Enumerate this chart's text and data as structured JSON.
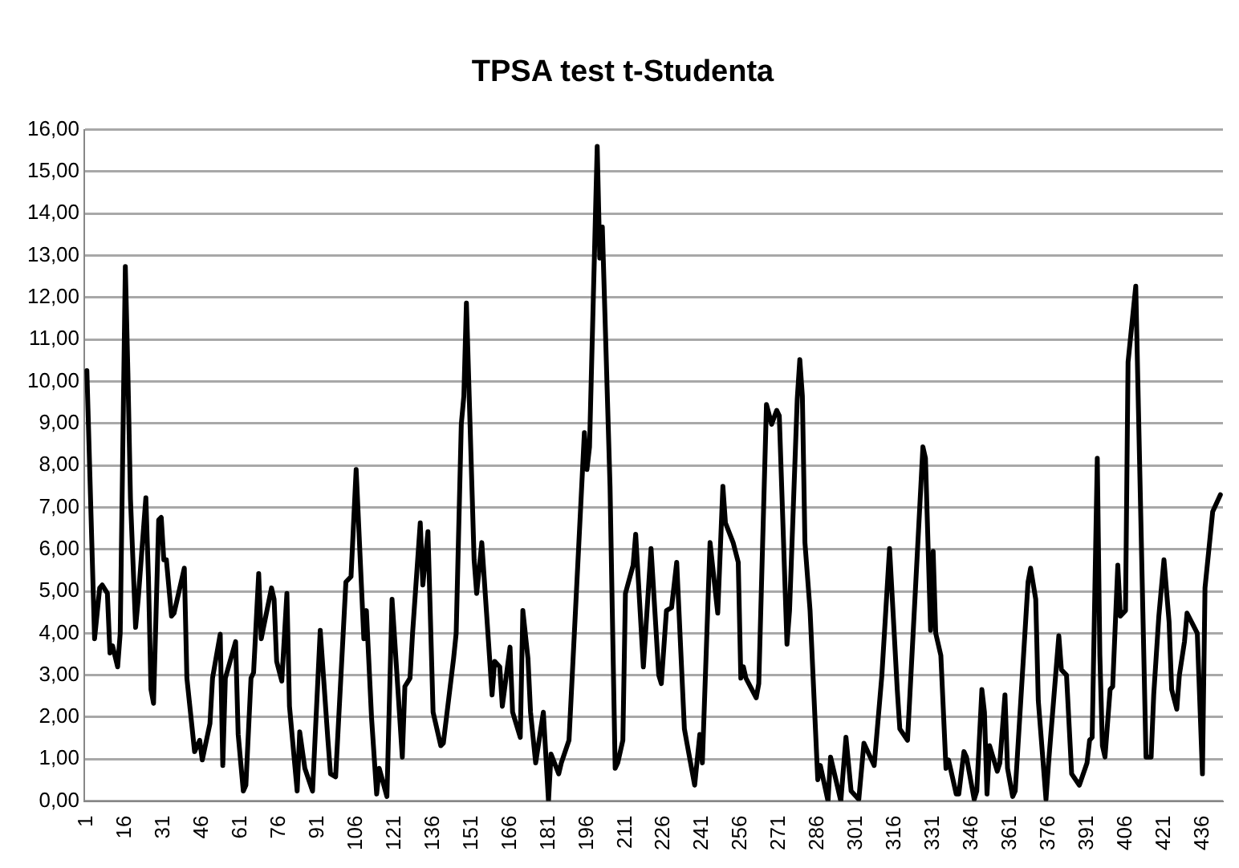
{
  "chart_data": {
    "type": "line",
    "title": "TPSA test t-Studenta",
    "x": [
      1,
      4,
      6,
      7,
      9,
      10,
      11,
      13,
      14,
      16,
      17,
      18,
      20,
      21,
      24,
      25,
      26,
      27,
      29,
      30,
      31,
      32,
      34,
      35,
      39,
      40,
      43,
      45,
      46,
      49,
      50,
      53,
      54,
      55,
      59,
      60,
      62,
      63,
      65,
      66,
      68,
      69,
      73,
      74,
      75,
      77,
      79,
      80,
      83,
      84,
      86,
      89,
      92,
      95,
      96,
      98,
      102,
      104,
      106,
      109,
      110,
      112,
      114,
      115,
      118,
      120,
      124,
      125,
      127,
      128,
      131,
      132,
      134,
      136,
      139,
      140,
      144,
      145,
      147,
      148,
      149,
      152,
      153,
      155,
      159,
      160,
      162,
      163,
      166,
      167,
      170,
      171,
      173,
      174,
      176,
      179,
      181,
      182,
      185,
      186,
      189,
      195,
      196,
      197,
      200,
      201,
      202,
      205,
      207,
      208,
      210,
      211,
      214,
      215,
      218,
      219,
      221,
      224,
      225,
      227,
      229,
      231,
      234,
      235,
      238,
      240,
      241,
      244,
      247,
      249,
      250,
      253,
      255,
      256,
      257,
      258,
      262,
      263,
      266,
      268,
      270,
      271,
      274,
      275,
      278,
      279,
      280,
      281,
      283,
      286,
      287,
      290,
      291,
      295,
      297,
      299,
      302,
      304,
      308,
      311,
      314,
      317,
      318,
      321,
      327,
      328,
      330,
      331,
      332,
      334,
      336,
      337,
      340,
      341,
      343,
      344,
      347,
      348,
      350,
      351,
      352,
      353,
      356,
      357,
      359,
      360,
      362,
      363,
      368,
      369,
      371,
      372,
      375,
      376,
      380,
      381,
      383,
      385,
      388,
      391,
      392,
      393,
      395,
      396,
      397,
      398,
      400,
      401,
      403,
      404,
      406,
      407,
      410,
      413,
      414,
      416,
      417,
      419,
      421,
      423,
      424,
      426,
      427,
      429,
      430,
      434,
      436,
      437,
      440,
      443
    ],
    "series": [
      {
        "color": "#000000",
        "values": [
          10.26,
          3.87,
          5.08,
          5.15,
          4.95,
          3.53,
          3.7,
          3.2,
          4.0,
          12.74,
          10.2,
          7.2,
          4.14,
          4.8,
          7.23,
          5.35,
          2.66,
          2.33,
          6.7,
          6.76,
          5.75,
          5.75,
          4.41,
          4.48,
          5.55,
          2.93,
          1.18,
          1.45,
          0.98,
          1.85,
          2.93,
          3.98,
          0.85,
          2.93,
          3.8,
          1.59,
          0.24,
          0.38,
          2.93,
          3.06,
          5.42,
          3.87,
          5.08,
          4.81,
          3.33,
          2.86,
          4.95,
          2.26,
          0.24,
          1.65,
          0.78,
          0.24,
          4.07,
          1.45,
          0.65,
          0.58,
          5.22,
          5.35,
          7.9,
          3.87,
          4.54,
          1.99,
          0.17,
          0.78,
          0.11,
          4.81,
          1.05,
          2.73,
          2.93,
          4.0,
          6.63,
          5.15,
          6.42,
          2.12,
          1.32,
          1.38,
          3.4,
          4.0,
          8.98,
          9.65,
          11.87,
          5.75,
          4.95,
          6.16,
          2.53,
          3.33,
          3.2,
          2.26,
          3.67,
          2.12,
          1.52,
          4.54,
          3.4,
          2.12,
          0.91,
          2.12,
          0,
          1.12,
          0.65,
          0.91,
          1.45,
          8.78,
          7.9,
          8.44,
          15.6,
          12.94,
          13.68,
          7.5,
          0.78,
          0.91,
          1.45,
          4.95,
          5.62,
          6.36,
          3.2,
          4.14,
          6.02,
          3.0,
          2.8,
          4.54,
          4.61,
          5.69,
          1.72,
          1.38,
          0.38,
          1.59,
          0.91,
          6.16,
          4.48,
          7.5,
          6.63,
          6.16,
          5.69,
          2.93,
          3.2,
          2.93,
          2.46,
          2.8,
          9.45,
          8.98,
          9.31,
          9.18,
          3.74,
          4.54,
          9.58,
          10.52,
          9.65,
          6.16,
          4.54,
          0.51,
          0.85,
          0,
          1.05,
          0,
          1.52,
          0.24,
          0.04,
          1.38,
          0.85,
          3.0,
          6.02,
          2.66,
          1.72,
          1.45,
          8.44,
          8.17,
          4.07,
          5.95,
          4.0,
          3.47,
          0.78,
          0.98,
          0.17,
          0.17,
          1.18,
          1.05,
          0.04,
          0.24,
          2.66,
          2.12,
          0.17,
          1.32,
          0.71,
          0.91,
          2.53,
          0.78,
          0.11,
          0.24,
          5.22,
          5.55,
          4.81,
          2.39,
          0.04,
          0.91,
          3.94,
          3.13,
          3.0,
          0.65,
          0.38,
          0.91,
          1.45,
          1.52,
          8.17,
          3.47,
          1.32,
          1.05,
          2.66,
          2.73,
          5.62,
          4.41,
          4.54,
          10.46,
          12.27,
          3.87,
          1.05,
          1.05,
          2.53,
          4.41,
          5.75,
          4.27,
          2.66,
          2.19,
          3.0,
          3.8,
          4.48,
          4.0,
          0.65,
          5.08,
          6.9,
          7.3
        ]
      }
    ],
    "xlim": [
      0,
      444
    ],
    "xticks": [
      1,
      16,
      31,
      46,
      61,
      76,
      91,
      106,
      121,
      136,
      151,
      166,
      181,
      196,
      211,
      226,
      241,
      256,
      271,
      286,
      301,
      316,
      331,
      346,
      361,
      376,
      391,
      406,
      421,
      436
    ],
    "ylim": [
      0,
      16
    ],
    "yticks": [
      {
        "value": 0,
        "label": "0,00"
      },
      {
        "value": 1,
        "label": "1,00"
      },
      {
        "value": 2,
        "label": "2,00"
      },
      {
        "value": 3,
        "label": "3,00"
      },
      {
        "value": 4,
        "label": "4,00"
      },
      {
        "value": 5,
        "label": "5,00"
      },
      {
        "value": 6,
        "label": "6,00"
      },
      {
        "value": 7,
        "label": "7,00"
      },
      {
        "value": 8,
        "label": "8,00"
      },
      {
        "value": 9,
        "label": "9,00"
      },
      {
        "value": 10,
        "label": "10,00"
      },
      {
        "value": 11,
        "label": "11,00"
      },
      {
        "value": 12,
        "label": "12,00"
      },
      {
        "value": 13,
        "label": "13,00"
      },
      {
        "value": 14,
        "label": "14,00"
      },
      {
        "value": 15,
        "label": "15,00"
      },
      {
        "value": 16,
        "label": "16,00"
      }
    ],
    "grid": "y",
    "legend": false,
    "marker": "none",
    "line_style": "solid"
  }
}
